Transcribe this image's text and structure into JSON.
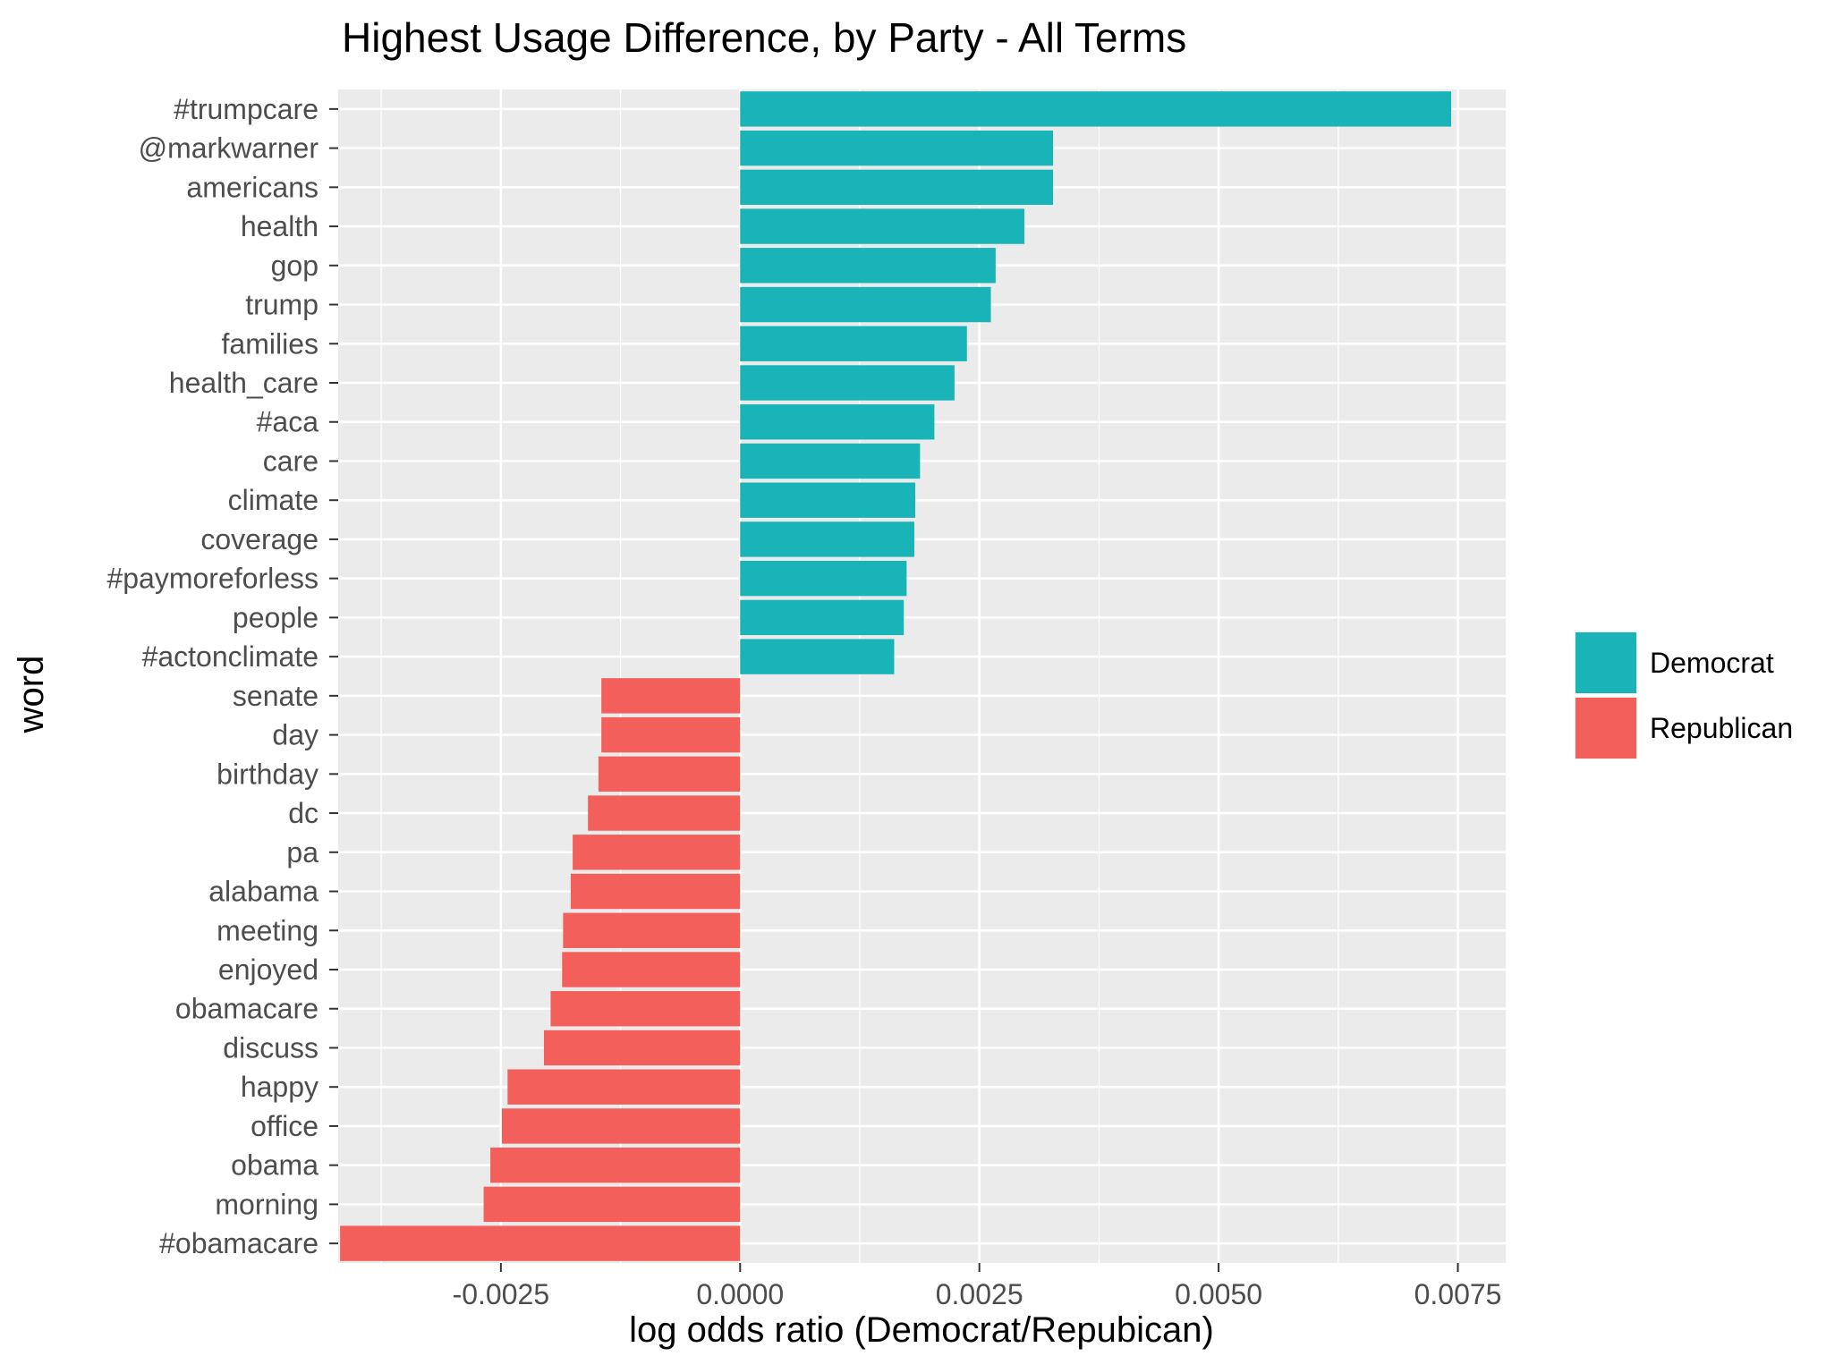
{
  "chart_data": {
    "type": "bar",
    "orientation": "horizontal",
    "title": "Highest Usage Difference, by Party - All Terms",
    "xlabel": "log odds ratio (Democrat/Repubican)",
    "ylabel": "word",
    "xlim": [
      -0.0042,
      0.008
    ],
    "xticks": [
      -0.0025,
      0.0,
      0.0025,
      0.005,
      0.0075
    ],
    "xtick_labels": [
      "-0.0025",
      "0.0000",
      "0.0025",
      "0.0050",
      "0.0075"
    ],
    "grid": true,
    "legend_position": "right",
    "legend": [
      {
        "name": "Democrat",
        "color": "#19b4b8"
      },
      {
        "name": "Republican",
        "color": "#f35f5b"
      }
    ],
    "bars": [
      {
        "word": "#trumpcare",
        "value": 0.00743,
        "party": "Democrat"
      },
      {
        "word": "@markwarner",
        "value": 0.00327,
        "party": "Democrat"
      },
      {
        "word": "americans",
        "value": 0.00327,
        "party": "Democrat"
      },
      {
        "word": "health",
        "value": 0.00297,
        "party": "Democrat"
      },
      {
        "word": "gop",
        "value": 0.00267,
        "party": "Democrat"
      },
      {
        "word": "trump",
        "value": 0.00262,
        "party": "Democrat"
      },
      {
        "word": "families",
        "value": 0.00237,
        "party": "Democrat"
      },
      {
        "word": "health_care",
        "value": 0.00224,
        "party": "Democrat"
      },
      {
        "word": "#aca",
        "value": 0.00203,
        "party": "Democrat"
      },
      {
        "word": "care",
        "value": 0.00188,
        "party": "Democrat"
      },
      {
        "word": "climate",
        "value": 0.00183,
        "party": "Democrat"
      },
      {
        "word": "coverage",
        "value": 0.00182,
        "party": "Democrat"
      },
      {
        "word": "#paymoreforless",
        "value": 0.00174,
        "party": "Democrat"
      },
      {
        "word": "people",
        "value": 0.00171,
        "party": "Democrat"
      },
      {
        "word": "#actonclimate",
        "value": 0.00161,
        "party": "Democrat"
      },
      {
        "word": "senate",
        "value": -0.00145,
        "party": "Republican"
      },
      {
        "word": "day",
        "value": -0.00145,
        "party": "Republican"
      },
      {
        "word": "birthday",
        "value": -0.00148,
        "party": "Republican"
      },
      {
        "word": "dc",
        "value": -0.00159,
        "party": "Republican"
      },
      {
        "word": "pa",
        "value": -0.00175,
        "party": "Republican"
      },
      {
        "word": "alabama",
        "value": -0.00177,
        "party": "Republican"
      },
      {
        "word": "meeting",
        "value": -0.00185,
        "party": "Republican"
      },
      {
        "word": "enjoyed",
        "value": -0.00186,
        "party": "Republican"
      },
      {
        "word": "obamacare",
        "value": -0.00198,
        "party": "Republican"
      },
      {
        "word": "discuss",
        "value": -0.00205,
        "party": "Republican"
      },
      {
        "word": "happy",
        "value": -0.00243,
        "party": "Republican"
      },
      {
        "word": "office",
        "value": -0.00249,
        "party": "Republican"
      },
      {
        "word": "obama",
        "value": -0.00261,
        "party": "Republican"
      },
      {
        "word": "morning",
        "value": -0.00268,
        "party": "Republican"
      },
      {
        "word": "#obamacare",
        "value": -0.00418,
        "party": "Republican"
      }
    ]
  }
}
